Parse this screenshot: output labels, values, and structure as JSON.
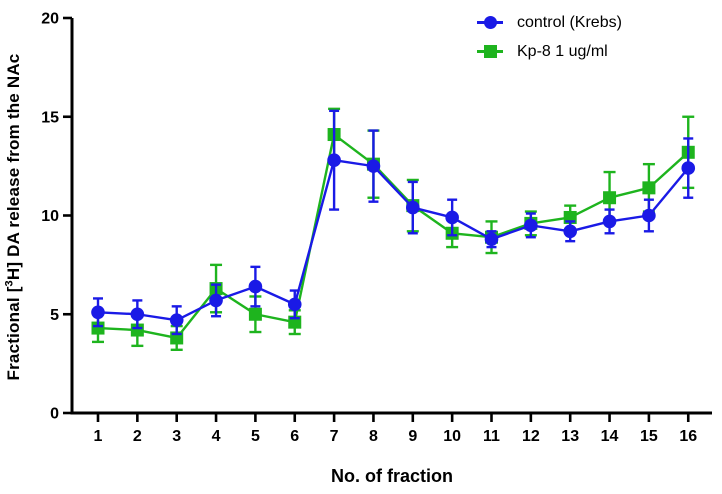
{
  "figure": {
    "background": "#ffffff",
    "text_color": "#000000",
    "axis_color": "#000000"
  },
  "chart_data": {
    "type": "line",
    "title": "",
    "xlabel": "No. of fraction",
    "ylabel": "Fractional [3H] DA release from the NAc",
    "ylabel_parts": {
      "prefix": "Fractional [",
      "sup": "3",
      "suffix": "H] DA release from the NAc"
    },
    "x": [
      1,
      2,
      3,
      4,
      5,
      6,
      7,
      8,
      9,
      10,
      11,
      12,
      13,
      14,
      15,
      16
    ],
    "xticks": [
      "1",
      "2",
      "3",
      "4",
      "5",
      "6",
      "7",
      "8",
      "9",
      "10",
      "11",
      "12",
      "13",
      "14",
      "15",
      "16"
    ],
    "ylim": [
      0,
      20
    ],
    "yticks": [
      0,
      5,
      10,
      15,
      20
    ],
    "grid": false,
    "error_bars": "sem, vertical with caps",
    "legend_position": "top-right",
    "series": [
      {
        "name": "control (Krebs)",
        "marker": "circle",
        "color": "#1A1AE6",
        "values": [
          5.1,
          5.0,
          4.7,
          5.7,
          6.4,
          5.5,
          12.8,
          12.5,
          10.4,
          9.9,
          8.8,
          9.5,
          9.2,
          9.7,
          10.0,
          12.4
        ],
        "sem": [
          0.7,
          0.7,
          0.7,
          0.8,
          1.0,
          0.7,
          2.5,
          1.8,
          1.3,
          0.9,
          0.4,
          0.6,
          0.5,
          0.6,
          0.8,
          1.5
        ]
      },
      {
        "name": "Kp-8 1 ug/ml",
        "marker": "square",
        "color": "#1EB41E",
        "values": [
          4.3,
          4.2,
          3.8,
          6.3,
          5.0,
          4.6,
          14.1,
          12.6,
          10.5,
          9.1,
          8.9,
          9.6,
          9.9,
          10.9,
          11.4,
          13.2
        ],
        "sem": [
          0.7,
          0.8,
          0.6,
          1.2,
          0.9,
          0.6,
          1.3,
          1.7,
          1.3,
          0.7,
          0.8,
          0.6,
          0.6,
          1.3,
          1.2,
          1.8
        ]
      }
    ]
  }
}
